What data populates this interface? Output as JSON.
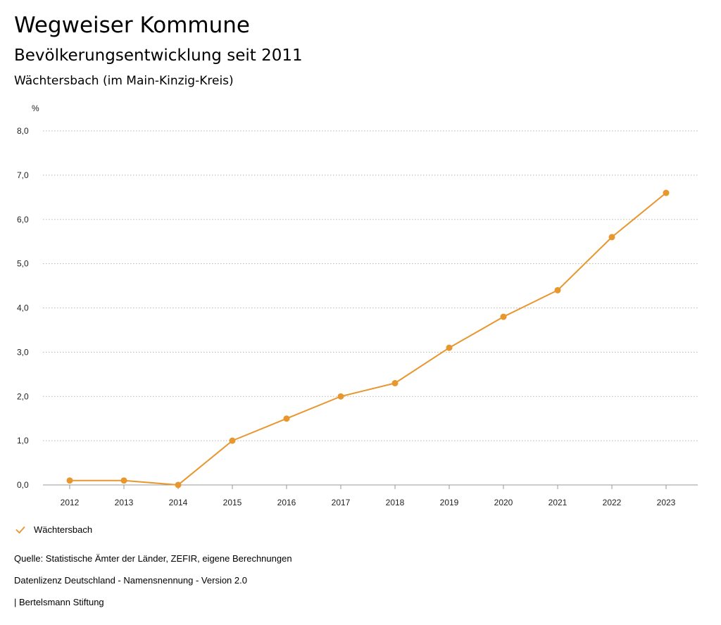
{
  "header": {
    "title": "Wegweiser Kommune",
    "subtitle": "Bevölkerungsentwicklung seit 2011",
    "region": "Wächtersbach (im Main-Kinzig-Kreis)"
  },
  "chart_data": {
    "type": "line",
    "ylabel": "%",
    "ylim": [
      0,
      8
    ],
    "yticks": [
      0,
      1,
      2,
      3,
      4,
      5,
      6,
      7,
      8
    ],
    "ytick_labels": [
      "0,0",
      "1,0",
      "2,0",
      "3,0",
      "4,0",
      "5,0",
      "6,0",
      "7,0",
      "8,0"
    ],
    "x": [
      "2012",
      "2013",
      "2014",
      "2015",
      "2016",
      "2017",
      "2018",
      "2019",
      "2020",
      "2021",
      "2022",
      "2023"
    ],
    "grid": true,
    "legend_position": "bottom-left",
    "series": [
      {
        "name": "Wächtersbach",
        "color": "#e8962e",
        "values": [
          0.1,
          0.1,
          0.0,
          1.0,
          1.5,
          2.0,
          2.3,
          3.1,
          3.8,
          4.4,
          5.6,
          6.6
        ]
      }
    ]
  },
  "legend": {
    "items": [
      {
        "label": "Wächtersbach",
        "icon": "check-icon",
        "color": "#e8962e"
      }
    ]
  },
  "footer": {
    "source": "Quelle: Statistische Ämter der Länder, ZEFIR, eigene Berechnungen",
    "license": "Datenlizenz Deutschland - Namensnennung - Version 2.0",
    "publisher": "| Bertelsmann Stiftung"
  }
}
